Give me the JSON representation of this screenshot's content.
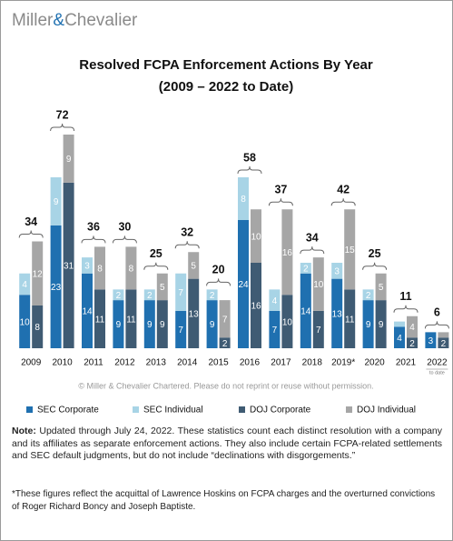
{
  "brand": [
    "Miller",
    "&",
    "Chevalier"
  ],
  "chart_data": {
    "type": "bar",
    "title": [
      "Resolved FCPA Enforcement Actions By Year",
      "(2009 – 2022 to Date)"
    ],
    "categories": [
      "2009",
      "2010",
      "2011",
      "2012",
      "2013",
      "2014",
      "2015",
      "2016",
      "2017",
      "2018",
      "2019*",
      "2020",
      "2021",
      "2022"
    ],
    "annotation": "to date",
    "series": [
      {
        "name": "SEC Corporate",
        "color": "#1f70b0",
        "values": [
          10,
          23,
          14,
          9,
          9,
          7,
          9,
          24,
          7,
          14,
          13,
          9,
          4,
          3
        ]
      },
      {
        "name": "SEC Individual",
        "color": "#a8d4e6",
        "values": [
          4,
          9,
          3,
          2,
          2,
          7,
          2,
          8,
          4,
          2,
          3,
          2,
          1,
          0
        ]
      },
      {
        "name": "DOJ Corporate",
        "color": "#3f5b73",
        "values": [
          8,
          31,
          11,
          11,
          9,
          13,
          2,
          16,
          10,
          7,
          11,
          9,
          2,
          2
        ]
      },
      {
        "name": "DOJ Individual",
        "color": "#a6a6a6",
        "values": [
          12,
          9,
          8,
          8,
          5,
          5,
          7,
          10,
          16,
          10,
          15,
          5,
          4,
          1
        ]
      }
    ],
    "totals": [
      34,
      72,
      36,
      30,
      25,
      32,
      20,
      58,
      37,
      34,
      42,
      25,
      11,
      6
    ]
  },
  "copyright": "© Miller & Chevalier Chartered. Please do not reprint or reuse without permission.",
  "note_label": "Note:",
  "note": "Updated through July 24, 2022. These statistics count each distinct resolution with a company and its affiliates as separate enforcement actions. They also include certain FCPA-related settlements and SEC default judgments, but do not include “declinations with disgorgements.”",
  "footnote": "*These figures reflect the acquittal of Lawrence Hoskins on FCPA charges and the overturned convictions of Roger Richard Boncy and Joseph Baptiste."
}
